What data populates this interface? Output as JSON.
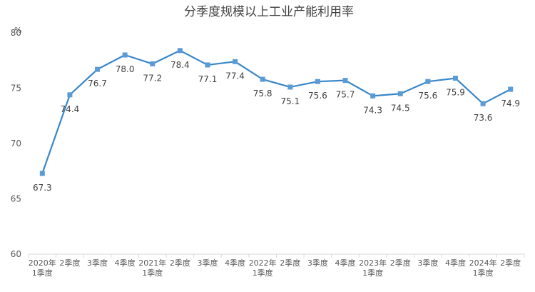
{
  "chart_data": {
    "type": "line",
    "title": "分季度规模以上工业产能利用率",
    "ylabel": "%",
    "xlabel": "",
    "ylim": [
      60,
      80
    ],
    "yticks": [
      60,
      65,
      70,
      75,
      80
    ],
    "grid": false,
    "legend": "none",
    "categories": [
      [
        "2020年",
        "1季度"
      ],
      [
        "2季度"
      ],
      [
        "3季度"
      ],
      [
        "4季度"
      ],
      [
        "2021年",
        "1季度"
      ],
      [
        "2季度"
      ],
      [
        "3季度"
      ],
      [
        "4季度"
      ],
      [
        "2022年",
        "1季度"
      ],
      [
        "2季度"
      ],
      [
        "3季度"
      ],
      [
        "4季度"
      ],
      [
        "2023年",
        "1季度"
      ],
      [
        "2季度"
      ],
      [
        "3季度"
      ],
      [
        "4季度"
      ],
      [
        "2024年",
        "1季度"
      ],
      [
        "2季度"
      ]
    ],
    "series": [
      {
        "values": [
          67.3,
          74.4,
          76.7,
          78.0,
          77.2,
          78.4,
          77.1,
          77.4,
          75.8,
          75.1,
          75.6,
          75.7,
          74.3,
          74.5,
          75.6,
          75.9,
          73.6,
          74.9
        ],
        "labels": [
          "67.3",
          "74.4",
          "76.7",
          "78.0",
          "77.2",
          "78.4",
          "77.1",
          "77.4",
          "75.8",
          "75.1",
          "75.6",
          "75.7",
          "74.3",
          "74.5",
          "75.6",
          "75.9",
          "73.6",
          "74.9"
        ],
        "color": "#3a87c8",
        "marker_color": "#5b9bd5"
      }
    ],
    "axis_color": "#d9d9d9",
    "text_color": "#595959",
    "title_color": "#404040"
  }
}
